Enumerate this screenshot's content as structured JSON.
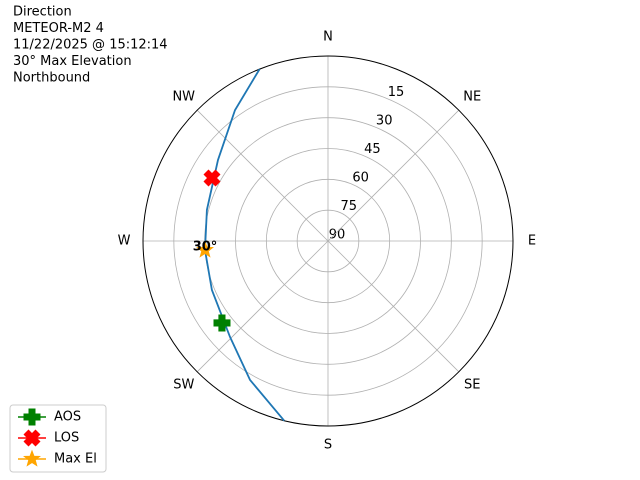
{
  "chart_data": {
    "type": "polar",
    "title_lines": [
      "Direction",
      "METEOR-M2 4",
      "11/22/2025 @ 15:12:14",
      "30° Max Elevation",
      "Northbound"
    ],
    "xticks": [
      {
        "value": 0,
        "label": "N"
      },
      {
        "value": 45,
        "label": "NE"
      },
      {
        "value": 90,
        "label": "E"
      },
      {
        "value": 135,
        "label": "SE"
      },
      {
        "value": 180,
        "label": "S"
      },
      {
        "value": 225,
        "label": "SW"
      },
      {
        "value": 270,
        "label": "W"
      },
      {
        "value": 315,
        "label": "NW"
      }
    ],
    "ylim": [
      90,
      0
    ],
    "yticks": [
      15,
      30,
      45,
      60,
      75,
      90
    ],
    "grid": true,
    "track": {
      "color": "#1f77b4",
      "x": [
        193.7,
        209.3,
        225.6,
        247.1,
        265.8,
        284.4,
        306.4,
        324.6,
        338.3
      ],
      "values": [
        0,
        12.5,
        23.3,
        28.7,
        30,
        29.2,
        23.5,
        11.9,
        0
      ]
    },
    "series": [
      {
        "name": "AOS",
        "color": "green",
        "marker": "plus",
        "x": [
          232.3
        ],
        "values": [
          24.8
        ]
      },
      {
        "name": "LOS",
        "color": "red",
        "marker": "x",
        "x": [
          298.5
        ],
        "values": [
          25.8
        ]
      },
      {
        "name": "Max El",
        "color": "orange",
        "marker": "star",
        "x": [
          265.8
        ],
        "values": [
          30
        ],
        "value_labels": [
          "30°"
        ]
      }
    ],
    "legend": "lower left"
  }
}
